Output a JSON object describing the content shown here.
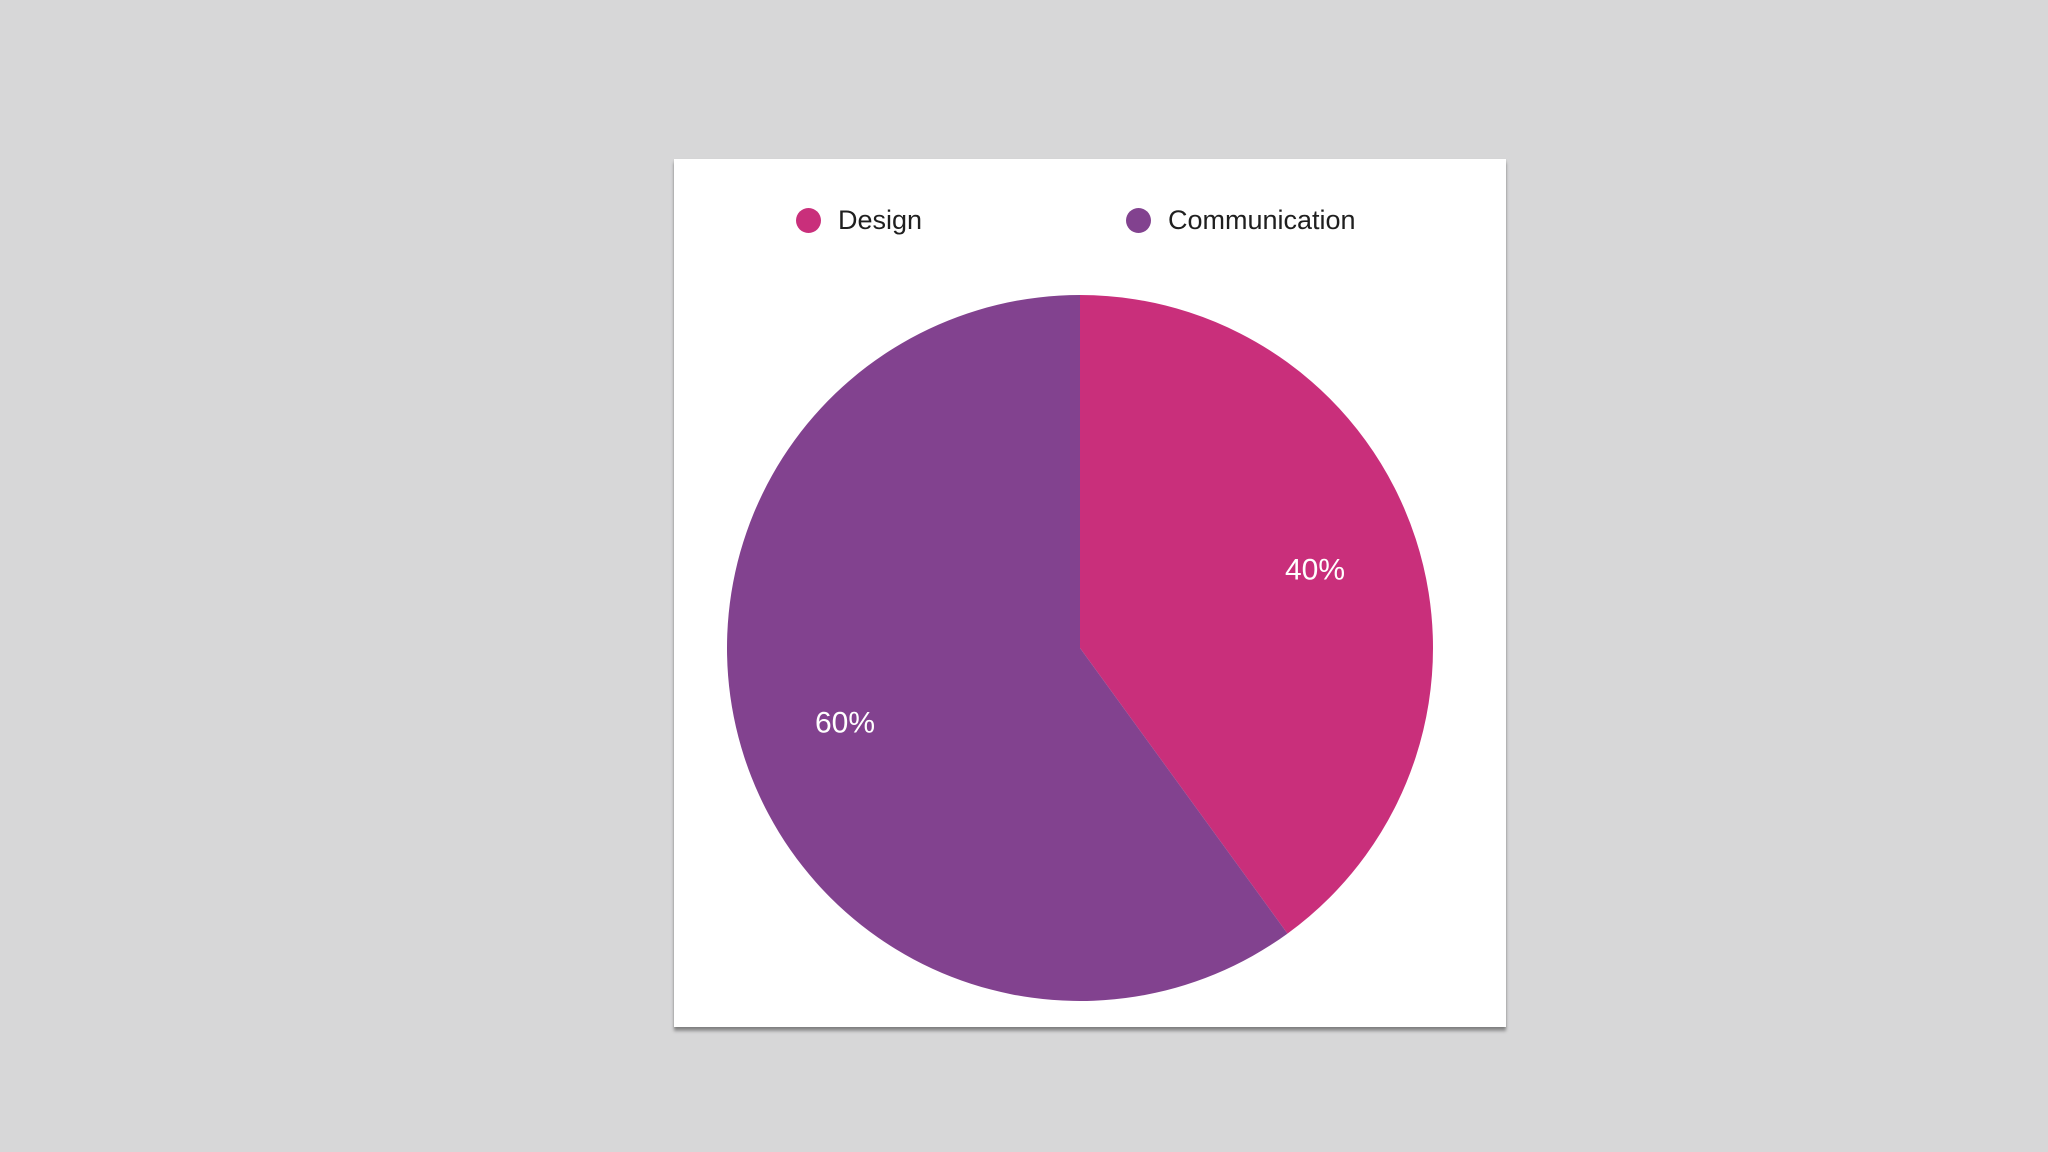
{
  "chart_data": {
    "type": "pie",
    "title": "",
    "legend_position": "top",
    "slices": [
      {
        "name": "Design",
        "value": 40,
        "label": "40%",
        "color": "#c92f7b"
      },
      {
        "name": "Communication",
        "value": 60,
        "label": "60%",
        "color": "#82428f"
      }
    ]
  },
  "colors": {
    "background": "#d7d7d8",
    "card": "#ffffff",
    "label_text": "#ffffff"
  }
}
